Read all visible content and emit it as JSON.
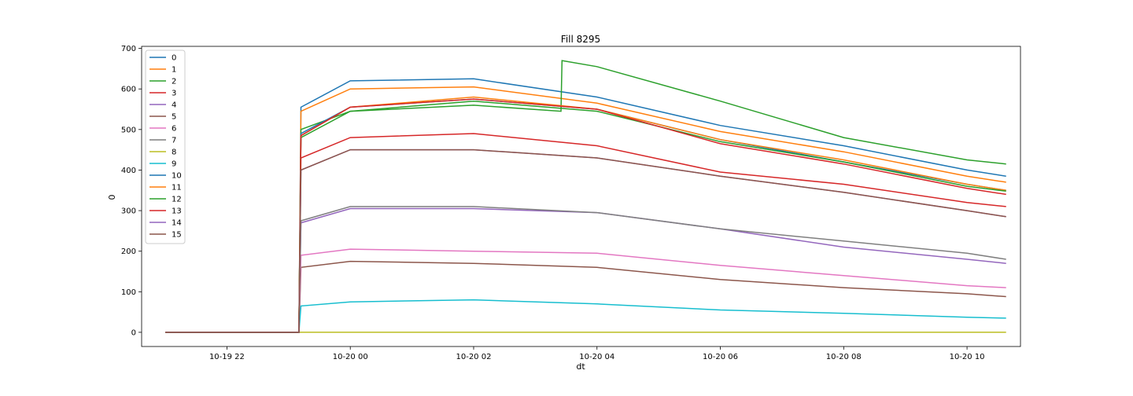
{
  "chart_data": {
    "type": "line",
    "title": "Fill 8295",
    "xlabel": "dt",
    "ylabel": "0",
    "xlim": [
      "2022-10-19 20:37",
      "2022-10-20 10:52"
    ],
    "ylim": [
      -35,
      705
    ],
    "x_ticks": [
      {
        "value": "2022-10-19 22:00",
        "label": "10-19 22"
      },
      {
        "value": "2022-10-20 00:00",
        "label": "10-20 00"
      },
      {
        "value": "2022-10-20 02:00",
        "label": "10-20 02"
      },
      {
        "value": "2022-10-20 04:00",
        "label": "10-20 04"
      },
      {
        "value": "2022-10-20 06:00",
        "label": "10-20 06"
      },
      {
        "value": "2022-10-20 08:00",
        "label": "10-20 08"
      },
      {
        "value": "2022-10-20 10:00",
        "label": "10-20 10"
      }
    ],
    "y_ticks": [
      0,
      100,
      200,
      300,
      400,
      500,
      600,
      700
    ],
    "grid": false,
    "legend_position": "top-left",
    "series": [
      {
        "name": "0",
        "color": "#1f77b4",
        "x": [
          "2022-10-19 21:00",
          "2022-10-19 23:10",
          "2022-10-19 23:12",
          "2022-10-20 00:00",
          "2022-10-20 02:00",
          "2022-10-20 04:00",
          "2022-10-20 06:00",
          "2022-10-20 08:00",
          "2022-10-20 10:00",
          "2022-10-20 10:38"
        ],
        "y": [
          0,
          0,
          555,
          620,
          625,
          580,
          510,
          460,
          400,
          385
        ]
      },
      {
        "name": "1",
        "color": "#ff7f0e",
        "x": [
          "2022-10-19 21:00",
          "2022-10-19 23:10",
          "2022-10-19 23:12",
          "2022-10-20 00:00",
          "2022-10-20 02:00",
          "2022-10-20 04:00",
          "2022-10-20 06:00",
          "2022-10-20 08:00",
          "2022-10-20 10:00",
          "2022-10-20 10:38"
        ],
        "y": [
          0,
          0,
          545,
          600,
          605,
          565,
          495,
          445,
          385,
          370
        ]
      },
      {
        "name": "2",
        "color": "#2ca02c",
        "x": [
          "2022-10-19 21:00",
          "2022-10-19 23:10",
          "2022-10-19 23:12",
          "2022-10-20 00:00",
          "2022-10-20 02:00",
          "2022-10-20 03:25",
          "2022-10-20 03:26",
          "2022-10-20 04:00",
          "2022-10-20 06:00",
          "2022-10-20 08:00",
          "2022-10-20 10:00",
          "2022-10-20 10:38"
        ],
        "y": [
          0,
          0,
          500,
          545,
          560,
          545,
          670,
          655,
          570,
          480,
          425,
          415
        ]
      },
      {
        "name": "3",
        "color": "#d62728",
        "x": [
          "2022-10-19 21:00",
          "2022-10-19 23:10",
          "2022-10-19 23:12",
          "2022-10-20 00:00",
          "2022-10-20 02:00",
          "2022-10-20 04:00",
          "2022-10-20 06:00",
          "2022-10-20 08:00",
          "2022-10-20 10:00",
          "2022-10-20 10:38"
        ],
        "y": [
          0,
          0,
          430,
          480,
          490,
          460,
          395,
          365,
          320,
          310
        ]
      },
      {
        "name": "4",
        "color": "#9467bd",
        "x": [
          "2022-10-19 21:00",
          "2022-10-19 23:10",
          "2022-10-19 23:12",
          "2022-10-20 00:00",
          "2022-10-20 02:00",
          "2022-10-20 04:00",
          "2022-10-20 06:00",
          "2022-10-20 08:00",
          "2022-10-20 10:00",
          "2022-10-20 10:38"
        ],
        "y": [
          0,
          0,
          270,
          305,
          305,
          295,
          255,
          210,
          180,
          170
        ]
      },
      {
        "name": "5",
        "color": "#8c564b",
        "x": [
          "2022-10-19 21:00",
          "2022-10-19 23:10",
          "2022-10-19 23:12",
          "2022-10-20 00:00",
          "2022-10-20 02:00",
          "2022-10-20 04:00",
          "2022-10-20 06:00",
          "2022-10-20 08:00",
          "2022-10-20 10:00",
          "2022-10-20 10:38"
        ],
        "y": [
          0,
          0,
          160,
          175,
          170,
          160,
          130,
          110,
          95,
          88
        ]
      },
      {
        "name": "6",
        "color": "#e377c2",
        "x": [
          "2022-10-19 21:00",
          "2022-10-19 23:10",
          "2022-10-19 23:12",
          "2022-10-20 00:00",
          "2022-10-20 02:00",
          "2022-10-20 04:00",
          "2022-10-20 06:00",
          "2022-10-20 08:00",
          "2022-10-20 10:00",
          "2022-10-20 10:38"
        ],
        "y": [
          0,
          0,
          190,
          205,
          200,
          195,
          165,
          140,
          115,
          110
        ]
      },
      {
        "name": "7",
        "color": "#7f7f7f",
        "x": [
          "2022-10-19 21:00",
          "2022-10-19 23:10",
          "2022-10-19 23:12",
          "2022-10-20 00:00",
          "2022-10-20 02:00",
          "2022-10-20 04:00",
          "2022-10-20 06:00",
          "2022-10-20 08:00",
          "2022-10-20 10:00",
          "2022-10-20 10:38"
        ],
        "y": [
          0,
          0,
          275,
          310,
          310,
          295,
          255,
          225,
          195,
          180
        ]
      },
      {
        "name": "8",
        "color": "#bcbd22",
        "x": [
          "2022-10-19 21:00",
          "2022-10-20 10:38"
        ],
        "y": [
          0,
          0
        ]
      },
      {
        "name": "9",
        "color": "#17becf",
        "x": [
          "2022-10-19 21:00",
          "2022-10-19 23:10",
          "2022-10-19 23:12",
          "2022-10-20 00:00",
          "2022-10-20 02:00",
          "2022-10-20 04:00",
          "2022-10-20 06:00",
          "2022-10-20 08:00",
          "2022-10-20 10:00",
          "2022-10-20 10:38"
        ],
        "y": [
          0,
          0,
          65,
          75,
          80,
          70,
          55,
          47,
          37,
          35
        ]
      },
      {
        "name": "10",
        "color": "#1f77b4",
        "x": [
          "2022-10-19 21:00",
          "2022-10-19 23:10",
          "2022-10-19 23:12",
          "2022-10-20 00:00",
          "2022-10-20 02:00",
          "2022-10-20 04:00",
          "2022-10-20 06:00",
          "2022-10-20 08:00",
          "2022-10-20 10:00",
          "2022-10-20 10:38"
        ],
        "y": [
          0,
          0,
          490,
          555,
          575,
          550,
          475,
          420,
          365,
          350
        ]
      },
      {
        "name": "11",
        "color": "#ff7f0e",
        "x": [
          "2022-10-19 21:00",
          "2022-10-19 23:10",
          "2022-10-19 23:12",
          "2022-10-20 00:00",
          "2022-10-20 02:00",
          "2022-10-20 04:00",
          "2022-10-20 06:00",
          "2022-10-20 08:00",
          "2022-10-20 10:00",
          "2022-10-20 10:38"
        ],
        "y": [
          0,
          0,
          485,
          555,
          580,
          550,
          475,
          425,
          365,
          350
        ]
      },
      {
        "name": "12",
        "color": "#2ca02c",
        "x": [
          "2022-10-19 21:00",
          "2022-10-19 23:10",
          "2022-10-19 23:12",
          "2022-10-20 00:00",
          "2022-10-20 02:00",
          "2022-10-20 04:00",
          "2022-10-20 06:00",
          "2022-10-20 08:00",
          "2022-10-20 10:00",
          "2022-10-20 10:38"
        ],
        "y": [
          0,
          0,
          480,
          545,
          570,
          545,
          470,
          420,
          360,
          348
        ]
      },
      {
        "name": "13",
        "color": "#d62728",
        "x": [
          "2022-10-19 21:00",
          "2022-10-19 23:10",
          "2022-10-19 23:12",
          "2022-10-20 00:00",
          "2022-10-20 02:00",
          "2022-10-20 04:00",
          "2022-10-20 06:00",
          "2022-10-20 08:00",
          "2022-10-20 10:00",
          "2022-10-20 10:38"
        ],
        "y": [
          0,
          0,
          485,
          555,
          575,
          550,
          465,
          415,
          355,
          340
        ]
      },
      {
        "name": "14",
        "color": "#9467bd",
        "x": [
          "2022-10-19 21:00",
          "2022-10-19 23:10",
          "2022-10-19 23:12",
          "2022-10-20 00:00",
          "2022-10-20 02:00",
          "2022-10-20 04:00",
          "2022-10-20 06:00",
          "2022-10-20 08:00",
          "2022-10-20 10:00",
          "2022-10-20 10:38"
        ],
        "y": [
          0,
          0,
          400,
          450,
          450,
          430,
          385,
          345,
          300,
          285
        ]
      },
      {
        "name": "15",
        "color": "#8c564b",
        "x": [
          "2022-10-19 21:00",
          "2022-10-19 23:10",
          "2022-10-19 23:12",
          "2022-10-20 00:00",
          "2022-10-20 02:00",
          "2022-10-20 04:00",
          "2022-10-20 06:00",
          "2022-10-20 08:00",
          "2022-10-20 10:00",
          "2022-10-20 10:38"
        ],
        "y": [
          0,
          0,
          400,
          450,
          450,
          430,
          385,
          345,
          300,
          285
        ]
      }
    ]
  }
}
